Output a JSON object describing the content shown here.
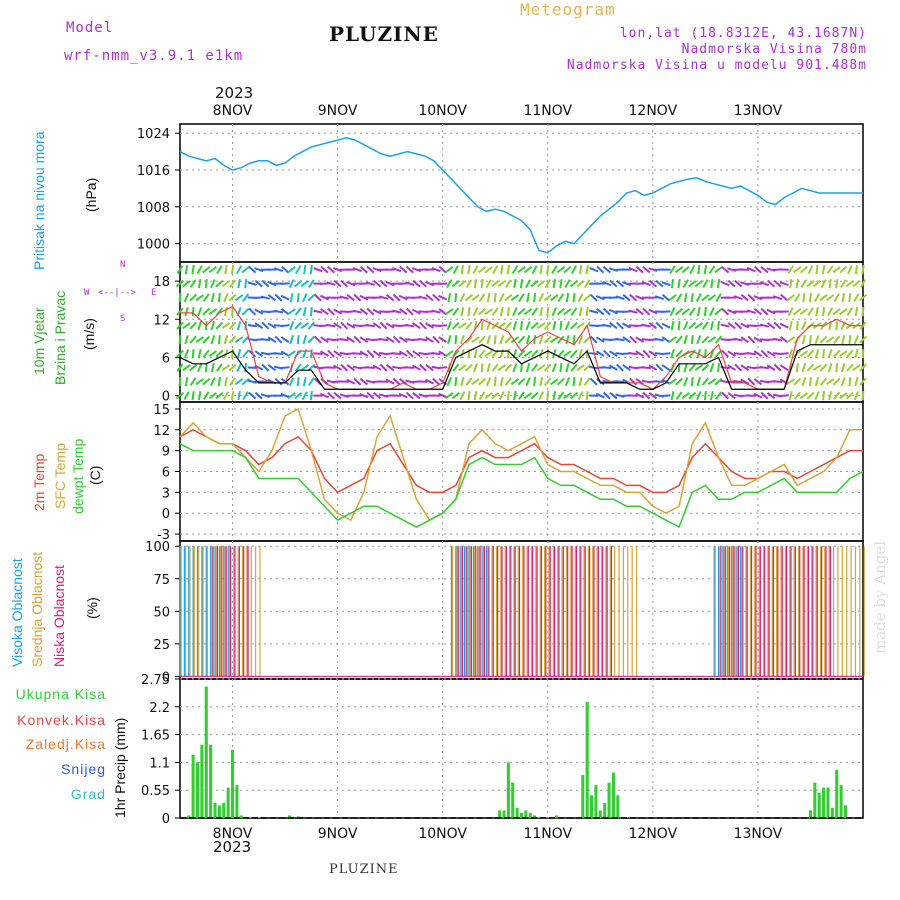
{
  "header": {
    "model_label": "Model",
    "model_name": "wrf-nmm_v3.9.1  e1km",
    "title": "PLUZINE",
    "meteogram_label": "Meteogram",
    "coords": "lon,lat (18.8312E, 43.1687N)",
    "altitude": "Nadmorska Visina 780m",
    "model_altitude": "Nadmorska Visina u modelu 901.488m"
  },
  "footer": {
    "station": "PLUZINE",
    "credit": "made by Angel"
  },
  "colors": {
    "pressure": "#1ea0e6",
    "wind": "#22bb22",
    "temp2m": "#e04a3a",
    "sfctemp": "#d7a53a",
    "dewpt": "#33cc33",
    "cloud_high": "#1ea0e6",
    "cloud_mid": "#d7a53a",
    "cloud_low": "#d0207e",
    "precip_total": "#33cc33",
    "precip_conv": "#ee4444",
    "precip_frozen": "#ee7733",
    "snow": "#3355ee",
    "hail": "#33bbbb",
    "wind_dir": "#aa33cc"
  },
  "time_axis": {
    "year_top": "2023",
    "year_bottom": "2023",
    "days": [
      "8NOV",
      "9NOV",
      "10NOV",
      "11NOV",
      "12NOV",
      "13NOV"
    ]
  },
  "panels": {
    "pressure": {
      "label": "Pritisak na nivou mora",
      "unit": "(hPa)"
    },
    "wind": {
      "label_line1": "10m Vjetar",
      "label_line2": "Brzina i Pravac",
      "unit": "(m/s)",
      "compass_n": "N",
      "compass_s": "S",
      "compass_w": "W",
      "compass_e": "E"
    },
    "temperature": {
      "label_2m": "2m Temp",
      "label_sfc": "SFC Temp",
      "label_dewpt": "dewpt Temp",
      "unit": "(C)"
    },
    "clouds": {
      "label_high": "Visoka Oblacnost",
      "label_mid": "Srednja Oblacnost",
      "label_low": "Niska Oblacnost",
      "unit": "(%)"
    },
    "precip": {
      "legend": [
        "Ukupna Kisa",
        "Konvek.Kisa",
        "Zaledj.Kisa",
        "Snijeg",
        "Grad"
      ],
      "unit": "1hr Precip (mm)"
    }
  },
  "chart_data": [
    {
      "type": "line",
      "panel": "pressure",
      "x_unit": "hours since 7 Nov 00:00",
      "ylim": [
        996,
        1026
      ],
      "yticks": [
        "1000",
        "1008",
        "1016",
        "1024"
      ],
      "x": [
        12,
        14,
        16,
        18,
        20,
        22,
        24,
        26,
        28,
        30,
        32,
        34,
        36,
        38,
        40,
        42,
        44,
        46,
        48,
        50,
        52,
        54,
        56,
        58,
        60,
        62,
        64,
        66,
        68,
        70,
        72,
        74,
        76,
        78,
        80,
        82,
        84,
        86,
        88,
        90,
        92,
        94,
        96,
        98,
        100,
        102,
        104,
        106,
        108,
        110,
        112,
        114,
        116,
        118,
        120,
        122,
        124,
        126,
        128,
        130,
        132,
        134,
        136,
        138,
        140,
        142,
        144,
        146,
        148,
        150,
        152,
        154,
        156,
        158,
        160,
        162,
        164,
        166,
        168
      ],
      "series": [
        {
          "values": [
            1020,
            1019,
            1018.5,
            1018,
            1018.5,
            1017,
            1016,
            1016.5,
            1017.5,
            1018,
            1018,
            1017,
            1017.5,
            1019,
            1020,
            1021,
            1021.5,
            1022,
            1022.5,
            1023,
            1022.5,
            1021.5,
            1020.5,
            1019.5,
            1019,
            1019.5,
            1020,
            1019.5,
            1019,
            1018,
            1016,
            1014,
            1012,
            1010,
            1008,
            1007,
            1007.5,
            1007,
            1006,
            1005,
            1003,
            998.5,
            998,
            999.5,
            1000.5,
            1000,
            1002,
            1004,
            1006,
            1007.5,
            1009,
            1011,
            1011.5,
            1010.5,
            1011,
            1012,
            1013,
            1013.5,
            1014,
            1014.3,
            1013.5,
            1013,
            1012.5,
            1012,
            1012.5,
            1011.5,
            1010.5,
            1009,
            1008.5,
            1010,
            1011,
            1012,
            1011.5,
            1011,
            1011,
            1011,
            1011,
            1011,
            1011
          ]
        }
      ]
    },
    {
      "type": "line",
      "panel": "wind",
      "ylim": [
        -1,
        21
      ],
      "yticks": [
        "0",
        "6",
        "12",
        "18"
      ],
      "x": [
        12,
        15,
        18,
        21,
        24,
        27,
        30,
        33,
        36,
        39,
        42,
        45,
        48,
        51,
        54,
        57,
        60,
        63,
        66,
        69,
        72,
        75,
        78,
        81,
        84,
        87,
        90,
        93,
        96,
        99,
        102,
        105,
        108,
        111,
        114,
        117,
        120,
        123,
        126,
        129,
        132,
        135,
        138,
        141,
        144,
        147,
        150,
        153,
        156,
        159,
        162,
        165,
        168
      ],
      "series": [
        {
          "name": "gust",
          "values": [
            13,
            13,
            11,
            13,
            14,
            11,
            3,
            2,
            2,
            7,
            7,
            2,
            1,
            1,
            1,
            1,
            1,
            2,
            1,
            1,
            2,
            7,
            9,
            12,
            11,
            10,
            7,
            9,
            10,
            9,
            8,
            11,
            3,
            2,
            2,
            2,
            1,
            3,
            6,
            7,
            6,
            8,
            2,
            2,
            1,
            1,
            1,
            9,
            11,
            11,
            12,
            11,
            11
          ]
        },
        {
          "name": "speed",
          "values": [
            6,
            5,
            5,
            6,
            7,
            4,
            2,
            2,
            2,
            4,
            4,
            1,
            1,
            1,
            1,
            1,
            1,
            1,
            1,
            1,
            1,
            6,
            7,
            8,
            7,
            7,
            5,
            6,
            7,
            6,
            5,
            7,
            2,
            2,
            2,
            1,
            1,
            2,
            5,
            5,
            5,
            6,
            1,
            1,
            1,
            1,
            1,
            7,
            8,
            8,
            8,
            8,
            8
          ]
        }
      ]
    },
    {
      "type": "line",
      "panel": "temperature",
      "ylim": [
        -4,
        16
      ],
      "yticks": [
        "-3",
        "0",
        "3",
        "6",
        "9",
        "12",
        "15"
      ],
      "x": [
        12,
        15,
        18,
        21,
        24,
        27,
        30,
        33,
        36,
        39,
        42,
        45,
        48,
        51,
        54,
        57,
        60,
        63,
        66,
        69,
        72,
        75,
        78,
        81,
        84,
        87,
        90,
        93,
        96,
        99,
        102,
        105,
        108,
        111,
        114,
        117,
        120,
        123,
        126,
        129,
        132,
        135,
        138,
        141,
        144,
        147,
        150,
        153,
        156,
        159,
        162,
        165,
        168
      ],
      "series": [
        {
          "name": "2m Temp",
          "values": [
            11,
            12,
            11,
            10,
            10,
            9,
            7,
            8,
            10,
            11,
            9,
            5,
            3,
            4,
            5,
            9,
            10,
            7,
            4,
            3,
            3,
            4,
            8,
            9,
            8,
            8,
            9,
            10,
            8,
            7,
            7,
            6,
            5,
            5,
            4,
            4,
            3,
            3,
            4,
            8,
            10,
            8,
            6,
            5,
            5,
            6,
            6,
            5,
            6,
            7,
            8,
            9,
            9
          ]
        },
        {
          "name": "SFC Temp",
          "values": [
            11,
            13,
            11,
            10,
            10,
            8,
            6,
            9,
            14,
            15,
            9,
            2,
            0,
            -1,
            3,
            11,
            14,
            8,
            2,
            -1,
            0,
            2,
            10,
            12,
            10,
            9,
            10,
            11,
            7,
            6,
            6,
            5,
            4,
            4,
            3,
            3,
            1,
            0,
            1,
            10,
            13,
            8,
            4,
            4,
            5,
            6,
            7,
            4,
            5,
            6,
            8,
            12,
            12
          ]
        },
        {
          "name": "dewpt Temp",
          "values": [
            10,
            9,
            9,
            9,
            9,
            8,
            5,
            5,
            5,
            5,
            3,
            1,
            -1,
            0,
            1,
            1,
            0,
            -1,
            -2,
            -1,
            0,
            2,
            7,
            8,
            7,
            7,
            7,
            8,
            5,
            4,
            4,
            3,
            2,
            2,
            1,
            1,
            0,
            -1,
            -2,
            3,
            4,
            2,
            2,
            3,
            3,
            4,
            5,
            3,
            3,
            3,
            3,
            5,
            6
          ]
        }
      ]
    },
    {
      "type": "bar",
      "panel": "clouds",
      "ylim": [
        0,
        100
      ],
      "yticks": [
        "0",
        "25",
        "50",
        "75",
        "100"
      ],
      "series": [
        {
          "name": "Visoka Oblacnost",
          "segments": [
            [
              12,
              23
            ],
            [
              74,
              82
            ],
            [
              134,
              140
            ]
          ],
          "value": 100
        },
        {
          "name": "Srednja Oblacnost",
          "segments": [
            [
              12,
              30
            ],
            [
              74,
              116
            ],
            [
              134,
              168
            ]
          ],
          "value": 100
        },
        {
          "name": "Niska Oblacnost",
          "segments": [
            [
              19,
              27
            ],
            [
              75,
              110
            ],
            [
              135,
              160
            ]
          ],
          "value": 100
        }
      ]
    },
    {
      "type": "bar",
      "panel": "precip",
      "ylim": [
        0,
        2.75
      ],
      "yticks": [
        "0",
        "0.55",
        "1.1",
        "1.65",
        "2.2",
        "2.75"
      ],
      "x": [
        14,
        15,
        16,
        17,
        18,
        19,
        20,
        21,
        22,
        23,
        24,
        25,
        26,
        27,
        28,
        29,
        30,
        37,
        39,
        85,
        86,
        87,
        88,
        89,
        90,
        91,
        92,
        93,
        94,
        95,
        96,
        97,
        98,
        103,
        104,
        105,
        106,
        107,
        108,
        109,
        110,
        111,
        112,
        113,
        114,
        115,
        156,
        157,
        158,
        159,
        160,
        161,
        162,
        163,
        164
      ],
      "series": [
        {
          "name": "Ukupna Kisa",
          "values": [
            0.05,
            1.25,
            1.1,
            1.45,
            2.6,
            1.45,
            0.3,
            0.25,
            0.3,
            0.6,
            1.35,
            0.65,
            0.05,
            0.02,
            0.02,
            0.01,
            0.01,
            0.05,
            0.03,
            0.15,
            0.15,
            1.1,
            0.7,
            0.2,
            0.1,
            0.15,
            0.1,
            0.05,
            0.02,
            0.02,
            0.02,
            0.02,
            0.05,
            0.02,
            0.85,
            2.3,
            0.45,
            0.65,
            0.15,
            0.3,
            0.7,
            0.9,
            0.45,
            0.02,
            0.02,
            0.02,
            0.15,
            0.7,
            0.5,
            0.6,
            0.6,
            0.2,
            0.95,
            0.65,
            0.25
          ]
        }
      ]
    }
  ]
}
